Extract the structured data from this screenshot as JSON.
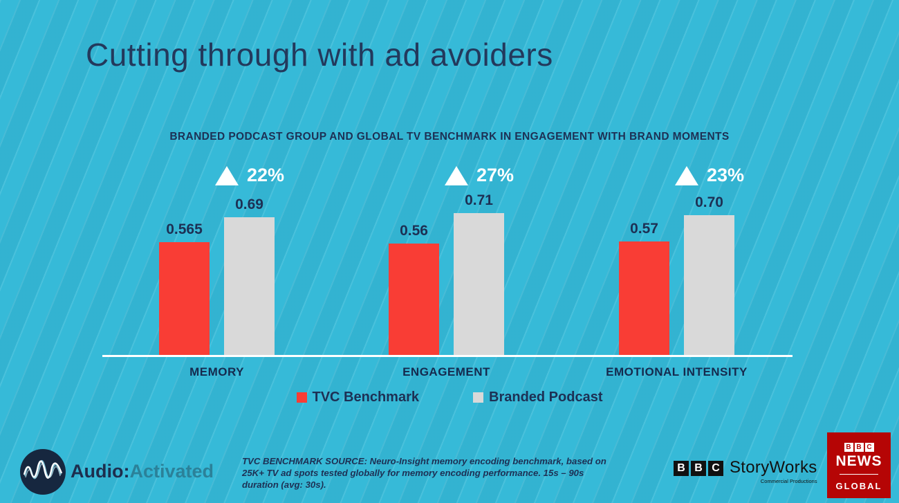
{
  "slide": {
    "title": "Cutting through with ad avoiders",
    "subtitle": "BRANDED PODCAST GROUP AND GLOBAL TV BENCHMARK IN ENGAGEMENT WITH BRAND MOMENTS"
  },
  "chart_data": {
    "type": "bar",
    "title": "BRANDED PODCAST GROUP AND GLOBAL TV BENCHMARK IN ENGAGEMENT WITH BRAND MOMENTS",
    "categories": [
      "MEMORY",
      "ENGAGEMENT",
      "EMOTIONAL INTENSITY"
    ],
    "series": [
      {
        "name": "TVC Benchmark",
        "color": "#f93d35",
        "values": [
          0.565,
          0.56,
          0.57
        ],
        "labels": [
          "0.565",
          "0.56",
          "0.57"
        ]
      },
      {
        "name": "Branded Podcast",
        "color": "#d9d9d9",
        "values": [
          0.69,
          0.71,
          0.7
        ],
        "labels": [
          "0.69",
          "0.71",
          "0.70"
        ]
      }
    ],
    "uplift_annotations": [
      "22%",
      "27%",
      "23%"
    ],
    "ylim": [
      0,
      0.75
    ],
    "grid": false,
    "legend_position": "bottom"
  },
  "legend": {
    "items": [
      {
        "label": "TVC Benchmark",
        "color": "#f93d35"
      },
      {
        "label": "Branded Podcast",
        "color": "#d9d9d9"
      }
    ]
  },
  "footer": {
    "brand": {
      "prefix": "Audio:",
      "suffix": "Activated"
    },
    "source_note": "TVC BENCHMARK SOURCE: Neuro-Insight memory encoding benchmark, based on 25K+ TV ad spots tested globally for memory encoding performance. 15s – 90s duration (avg: 30s).",
    "storyworks": {
      "letters": [
        "B",
        "B",
        "C"
      ],
      "name": "StoryWorks",
      "subtitle": "Commercial Productions"
    },
    "news_badge": {
      "letters": [
        "B",
        "B",
        "C"
      ],
      "line1": "NEWS",
      "line2": "GLOBAL",
      "color": "#b50505"
    }
  },
  "colors": {
    "background": "#36bad8",
    "bar_red": "#f93d35",
    "bar_gray": "#d9d9d9",
    "text_navy": "#1d3054",
    "title_navy": "#23395c",
    "brand_teal": "#2b8199",
    "news_red": "#b50505",
    "axis_white": "#ffffff"
  }
}
